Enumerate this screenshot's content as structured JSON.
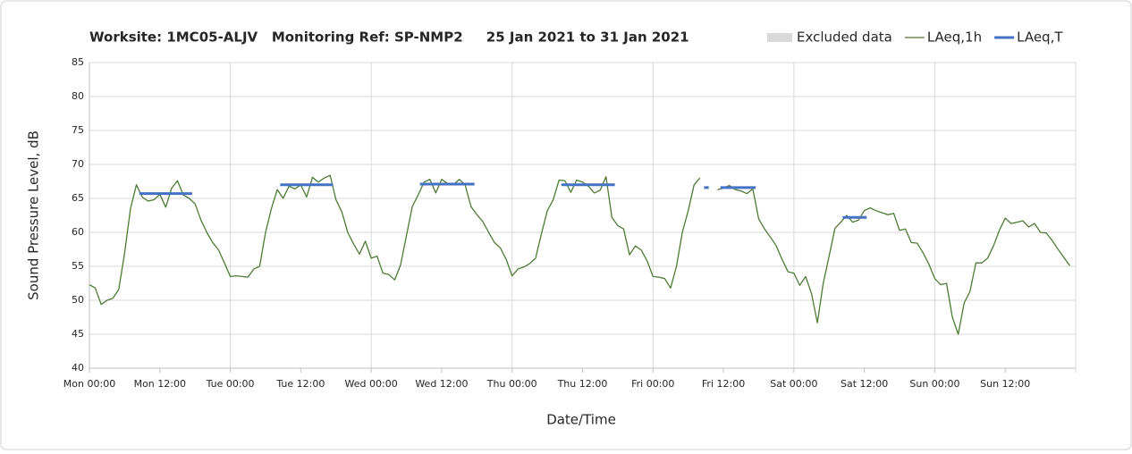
{
  "chart_data": {
    "type": "line",
    "title": "Worksite: 1MC05-ALJV   Monitoring Ref: SP-NMP2     25 Jan 2021 to 31 Jan 2021",
    "xlabel": "Date/Time",
    "ylabel": "Sound Pressure Level, dB",
    "xlim": [
      0,
      168
    ],
    "ylim": [
      40,
      85
    ],
    "yticks": [
      40,
      45,
      50,
      55,
      60,
      65,
      70,
      75,
      80,
      85
    ],
    "xticks": [
      {
        "value": 0,
        "label": "Mon 00:00"
      },
      {
        "value": 12,
        "label": "Mon 12:00"
      },
      {
        "value": 24,
        "label": "Tue 00:00"
      },
      {
        "value": 36,
        "label": "Tue 12:00"
      },
      {
        "value": 48,
        "label": "Wed 00:00"
      },
      {
        "value": 60,
        "label": "Wed 12:00"
      },
      {
        "value": 72,
        "label": "Thu 00:00"
      },
      {
        "value": 84,
        "label": "Thu 12:00"
      },
      {
        "value": 96,
        "label": "Fri 00:00"
      },
      {
        "value": 108,
        "label": "Fri 12:00"
      },
      {
        "value": 120,
        "label": "Sat 00:00"
      },
      {
        "value": 132,
        "label": "Sat 12:00"
      },
      {
        "value": 144,
        "label": "Sun 00:00"
      },
      {
        "value": 156,
        "label": "Sun 12:00"
      }
    ],
    "xgrid_every": 24,
    "grid": true,
    "excluded": {
      "name": "Excluded data",
      "color": "#d9d9d9"
    },
    "series": [
      {
        "name": "LAeq,1h",
        "color": "#4e7a34",
        "width": 1.3,
        "x": [
          0,
          1,
          2,
          3,
          4,
          5,
          6,
          7,
          8,
          9,
          10,
          11,
          12,
          13,
          14,
          15,
          16,
          17,
          18,
          19,
          20,
          21,
          22,
          23,
          24,
          25,
          26,
          27,
          28,
          29,
          30,
          31,
          32,
          33,
          34,
          35,
          36,
          37,
          38,
          39,
          40,
          41,
          42,
          43,
          44,
          45,
          46,
          47,
          48,
          49,
          50,
          51,
          52,
          53,
          54,
          55,
          56,
          57,
          58,
          59,
          60,
          61,
          62,
          63,
          64,
          65,
          66,
          67,
          68,
          69,
          70,
          71,
          72,
          73,
          74,
          75,
          76,
          77,
          78,
          79,
          80,
          81,
          82,
          83,
          84,
          85,
          86,
          87,
          88,
          89,
          90,
          91,
          92,
          93,
          94,
          95,
          96,
          97,
          98,
          99,
          100,
          101,
          102,
          103,
          104,
          105,
          106,
          107,
          108,
          109,
          110,
          111,
          112,
          113,
          114,
          115,
          116,
          117,
          118,
          119,
          120,
          121,
          122,
          123,
          124,
          125,
          126,
          127,
          128,
          129,
          130,
          131,
          132,
          133,
          134,
          135,
          136,
          137,
          138,
          139,
          140,
          141,
          142,
          143,
          144,
          145,
          146,
          147,
          148,
          149,
          150,
          151,
          152,
          153,
          154,
          155,
          156,
          157,
          158,
          159,
          160,
          161,
          162,
          163,
          164,
          165,
          166,
          167
        ],
        "values": [
          52.3,
          51.8,
          49.4,
          50.0,
          50.3,
          51.6,
          57.0,
          63.5,
          67.0,
          65.2,
          64.6,
          64.8,
          65.6,
          63.7,
          66.5,
          67.6,
          65.5,
          65.0,
          64.2,
          61.8,
          60.0,
          58.5,
          57.4,
          55.5,
          53.5,
          53.6,
          53.5,
          53.4,
          54.6,
          55.0,
          60.0,
          63.5,
          66.3,
          65.0,
          66.8,
          66.4,
          67.0,
          65.2,
          68.1,
          67.4,
          68.0,
          68.4,
          64.8,
          63.0,
          60.0,
          58.3,
          56.8,
          58.7,
          56.2,
          56.5,
          54.0,
          53.8,
          53.0,
          55.2,
          59.5,
          63.8,
          65.5,
          67.4,
          67.8,
          65.8,
          67.8,
          67.2,
          67.0,
          67.8,
          67.0,
          63.8,
          62.6,
          61.6,
          60.0,
          58.5,
          57.7,
          56.0,
          53.6,
          54.6,
          54.9,
          55.4,
          56.2,
          59.8,
          63.2,
          64.8,
          67.7,
          67.6,
          65.9,
          67.7,
          67.4,
          66.8,
          65.8,
          66.2,
          68.2,
          62.2,
          61.0,
          60.5,
          56.7,
          58.0,
          57.4,
          55.8,
          53.5,
          53.4,
          53.2,
          51.8,
          55.0,
          60.0,
          63.2,
          67.0,
          68.0,
          null,
          null,
          66.3,
          66.5,
          66.9,
          66.3,
          66.1,
          65.7,
          66.4,
          62.0,
          60.5,
          59.3,
          58.0,
          56.0,
          54.2,
          54.0,
          52.2,
          53.5,
          51.0,
          46.7,
          52.5,
          56.5,
          60.6,
          61.5,
          62.5,
          61.5,
          61.8,
          63.2,
          63.6,
          63.2,
          62.9,
          62.6,
          62.8,
          60.3,
          60.5,
          58.5,
          58.4,
          57.0,
          55.3,
          53.2,
          52.3,
          52.5,
          47.5,
          45.0,
          49.6,
          51.3,
          55.5,
          55.5,
          56.2,
          58.0,
          60.3,
          62.1,
          61.3,
          61.5,
          61.7,
          60.8,
          61.3,
          60.0,
          59.9,
          58.8,
          57.5,
          56.3,
          55.1
        ]
      },
      {
        "name": "LAeq,T",
        "color": "#4472c4",
        "width": 3,
        "x": [
          8.5,
          17.5,
          null,
          32.5,
          41.5,
          null,
          56.3,
          65.6,
          null,
          80.4,
          89.5,
          null,
          104.7,
          105.5,
          null,
          107.5,
          113.5,
          null,
          128.3,
          132.4
        ],
        "values": [
          65.7,
          65.7,
          null,
          67.0,
          67.0,
          null,
          67.1,
          67.1,
          null,
          67.0,
          67.0,
          null,
          66.6,
          66.6,
          null,
          66.6,
          66.6,
          null,
          62.2,
          62.2
        ]
      }
    ]
  }
}
